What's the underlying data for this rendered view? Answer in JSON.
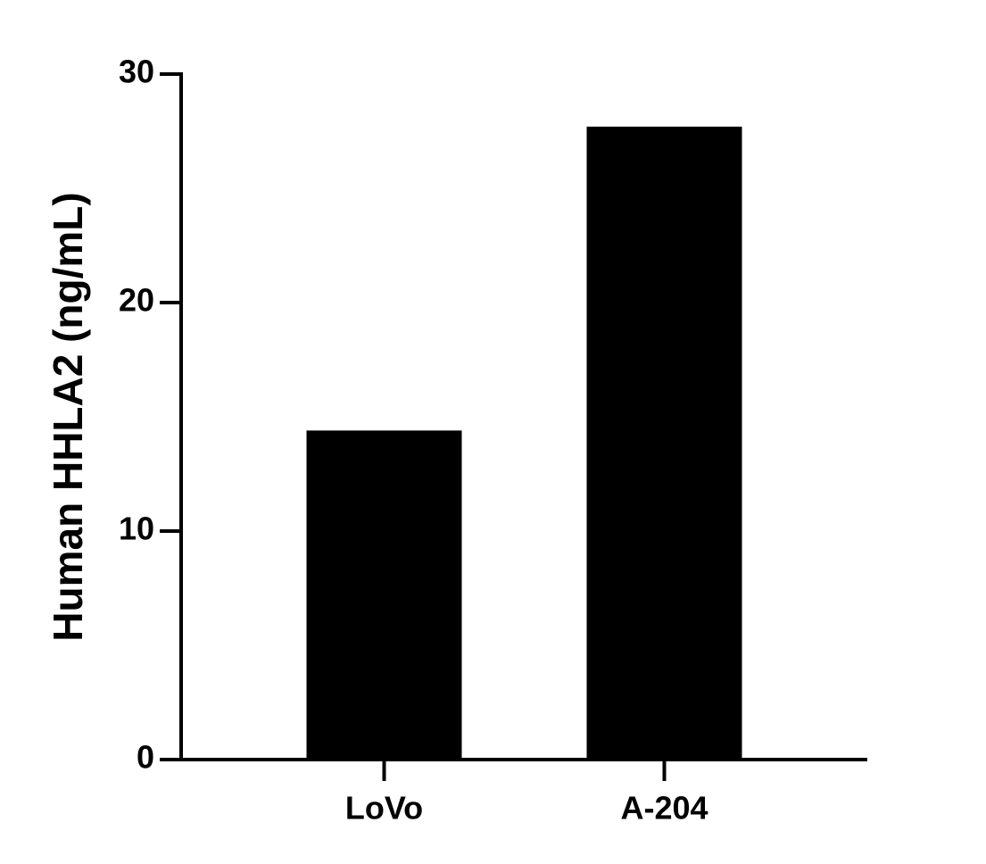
{
  "chart_data": {
    "type": "bar",
    "y_label": "Human HHLA2 (ng/mL)",
    "categories": [
      "LoVo",
      "A-204"
    ],
    "values": [
      14.4,
      27.7
    ],
    "color": "#000000",
    "ylim": [
      0,
      30
    ],
    "yticks": [
      0,
      10,
      20,
      30
    ],
    "grid": false
  }
}
